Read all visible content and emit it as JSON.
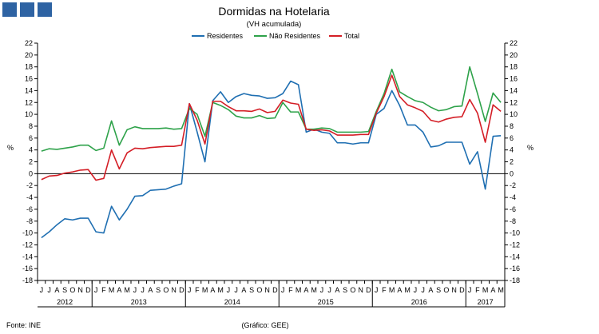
{
  "header": {
    "logo": "logo-squares"
  },
  "colors": {
    "residentes": "#1f6fb2",
    "nao_residentes": "#2ea24a",
    "total": "#d41e26",
    "logo": "#2e63a3",
    "axis": "#000000",
    "zero_line": "#000000"
  },
  "footer": {
    "source": "Fonte: INE",
    "credit": "(Gráfico: GEE)"
  },
  "chart_data": {
    "type": "line",
    "title": "Dormidas na Hotelaria",
    "subtitle": "(VH acumulada)",
    "ylabel_left": "%",
    "ylabel_right": "%",
    "ylim": [
      -18,
      22
    ],
    "yticks": [
      -18,
      -16,
      -14,
      -12,
      -10,
      -8,
      -6,
      -4,
      -2,
      0,
      2,
      4,
      6,
      8,
      10,
      12,
      14,
      16,
      18,
      20,
      22
    ],
    "grid": false,
    "legend_position": "top-center",
    "x_month_labels": [
      "J",
      "J",
      "A",
      "S",
      "O",
      "N",
      "D",
      "J",
      "F",
      "M",
      "A",
      "M",
      "J",
      "J",
      "A",
      "S",
      "O",
      "N",
      "D",
      "J",
      "F",
      "M",
      "A",
      "M",
      "J",
      "J",
      "A",
      "S",
      "O",
      "N",
      "D",
      "J",
      "F",
      "M",
      "A",
      "M",
      "J",
      "J",
      "A",
      "S",
      "O",
      "N",
      "D",
      "J",
      "F",
      "M",
      "A",
      "M",
      "J",
      "J",
      "A",
      "S",
      "O",
      "N",
      "D",
      "J",
      "F",
      "M",
      "A",
      "M"
    ],
    "year_groups": [
      {
        "label": "2012",
        "start": 0,
        "count": 7
      },
      {
        "label": "2013",
        "start": 7,
        "count": 12
      },
      {
        "label": "2014",
        "start": 19,
        "count": 12
      },
      {
        "label": "2015",
        "start": 31,
        "count": 12
      },
      {
        "label": "2016",
        "start": 43,
        "count": 12
      },
      {
        "label": "2017",
        "start": 55,
        "count": 5
      }
    ],
    "series": [
      {
        "name": "Residentes",
        "color": "#1f6fb2",
        "values": [
          -10.8,
          -9.8,
          -8.6,
          -7.6,
          -7.8,
          -7.5,
          -7.5,
          -9.8,
          -10.0,
          -5.5,
          -7.8,
          -6.0,
          -3.8,
          -3.7,
          -2.8,
          -2.7,
          -2.6,
          -2.1,
          -1.7,
          11.8,
          7.0,
          2.0,
          12.3,
          13.8,
          12.0,
          13.0,
          13.5,
          13.2,
          13.1,
          12.7,
          12.8,
          13.5,
          15.6,
          15.0,
          7.0,
          7.5,
          7.0,
          6.8,
          5.2,
          5.2,
          5.0,
          5.2,
          5.2,
          10.0,
          11.0,
          14.0,
          11.5,
          8.2,
          8.2,
          7.0,
          4.5,
          4.7,
          5.3,
          5.3,
          5.3,
          1.6,
          3.7,
          -2.6,
          6.3,
          6.4
        ]
      },
      {
        "name": "Não Residentes",
        "color": "#2ea24a",
        "values": [
          3.8,
          4.2,
          4.1,
          4.3,
          4.5,
          4.8,
          4.8,
          3.9,
          4.3,
          8.9,
          4.8,
          7.4,
          7.9,
          7.6,
          7.6,
          7.6,
          7.7,
          7.5,
          7.6,
          11.0,
          10.0,
          6.3,
          12.0,
          11.5,
          10.8,
          9.7,
          9.4,
          9.4,
          9.8,
          9.3,
          9.4,
          12.0,
          10.4,
          10.4,
          7.5,
          7.5,
          7.7,
          7.6,
          7.0,
          7.0,
          7.0,
          7.0,
          7.1,
          10.5,
          13.5,
          17.6,
          13.8,
          13.0,
          12.3,
          12.0,
          11.2,
          10.6,
          10.8,
          11.3,
          11.4,
          18.0,
          13.5,
          8.8,
          13.6,
          12.0
        ]
      },
      {
        "name": "Total",
        "color": "#d41e26",
        "values": [
          -1.0,
          -0.4,
          -0.3,
          0.1,
          0.3,
          0.6,
          0.7,
          -1.1,
          -0.8,
          4.0,
          0.8,
          3.5,
          4.3,
          4.2,
          4.4,
          4.5,
          4.6,
          4.6,
          4.8,
          11.8,
          9.0,
          5.0,
          12.2,
          12.2,
          11.3,
          10.6,
          10.6,
          10.5,
          10.9,
          10.3,
          10.5,
          12.4,
          11.9,
          11.7,
          7.5,
          7.3,
          7.4,
          7.2,
          6.5,
          6.5,
          6.5,
          6.6,
          6.6,
          10.2,
          13.0,
          16.6,
          13.0,
          11.6,
          11.1,
          10.5,
          9.0,
          8.7,
          9.2,
          9.5,
          9.6,
          12.5,
          10.2,
          5.3,
          11.6,
          10.5
        ]
      }
    ]
  }
}
